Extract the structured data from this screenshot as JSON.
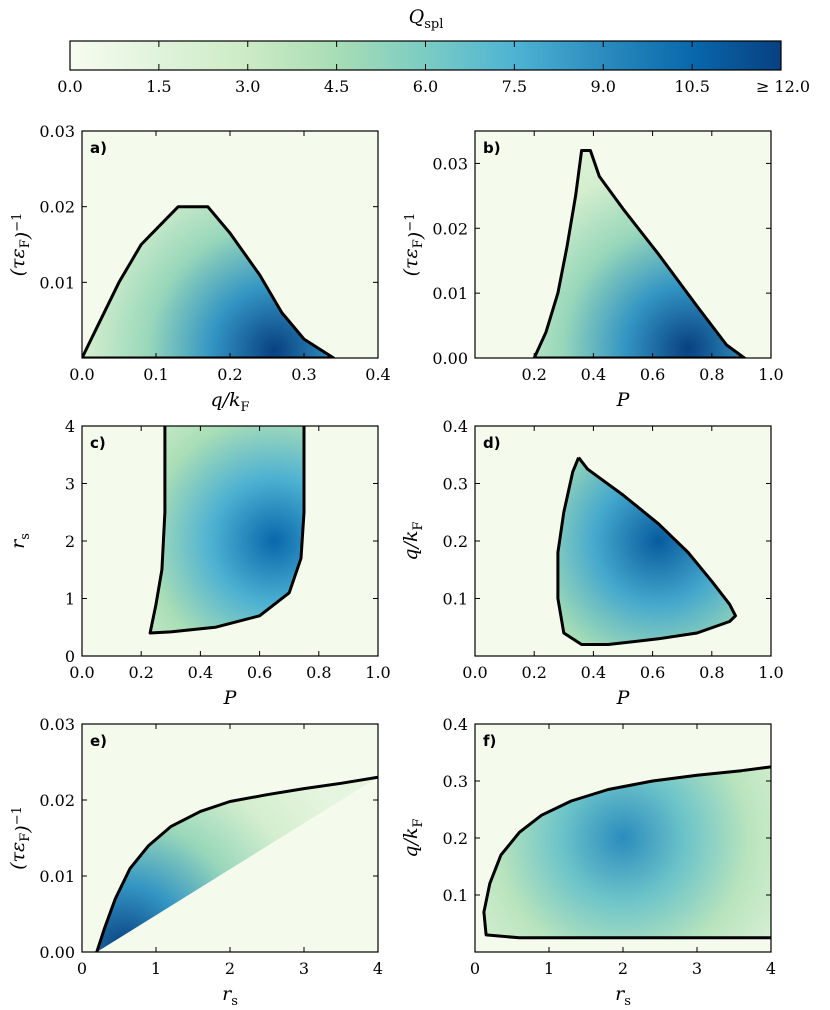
{
  "colorbar": {
    "label": "Q_spl",
    "label_main": "Q",
    "label_sub": "spl",
    "ticks": [
      0.0,
      1.5,
      3.0,
      4.5,
      6.0,
      7.5,
      9.0,
      10.5,
      12.0
    ],
    "tick_labels": [
      "0.0",
      "1.5",
      "3.0",
      "4.5",
      "6.0",
      "7.5",
      "9.0",
      "10.5",
      "≥ 12.0"
    ],
    "min": 0,
    "max": 12,
    "colormap": [
      "#f7fcf0",
      "#e0f3db",
      "#ccebc5",
      "#a8ddb5",
      "#7bccc4",
      "#4eb3d3",
      "#2b8cbe",
      "#0868ac",
      "#084081"
    ]
  },
  "chart_data": [
    {
      "type": "heatmap",
      "panel": "a)",
      "xlabel": "q/k_F",
      "ylabel": "(τε_F)^−1",
      "xlim": [
        0.0,
        0.4
      ],
      "ylim": [
        0.0,
        0.03
      ],
      "xticks": [
        0.0,
        0.1,
        0.2,
        0.3,
        0.4
      ],
      "xtick_labels": [
        "0.0",
        "0.1",
        "0.2",
        "0.3",
        "0.4"
      ],
      "yticks": [
        0.01,
        0.02,
        0.03
      ],
      "ytick_labels": [
        "0.01",
        "0.02",
        "0.03"
      ],
      "boundary": [
        [
          0.0,
          0.0
        ],
        [
          0.02,
          0.004
        ],
        [
          0.05,
          0.01
        ],
        [
          0.08,
          0.015
        ],
        [
          0.11,
          0.018
        ],
        [
          0.13,
          0.02
        ],
        [
          0.17,
          0.02
        ],
        [
          0.2,
          0.0165
        ],
        [
          0.24,
          0.011
        ],
        [
          0.27,
          0.006
        ],
        [
          0.3,
          0.0025
        ],
        [
          0.34,
          0.0
        ],
        [
          0.0,
          0.0
        ]
      ],
      "peak": {
        "x": 0.26,
        "y": 0.001,
        "value": 12.0
      }
    },
    {
      "type": "heatmap",
      "panel": "b)",
      "xlabel": "P",
      "ylabel": "(τε_F)^−1",
      "xlim": [
        0.0,
        1.0
      ],
      "ylim": [
        0.0,
        0.035
      ],
      "xticks": [
        0.2,
        0.4,
        0.6,
        0.8,
        1.0
      ],
      "xtick_labels": [
        "0.2",
        "0.4",
        "0.6",
        "0.8",
        "1.0"
      ],
      "yticks": [
        0.0,
        0.01,
        0.02,
        0.03
      ],
      "ytick_labels": [
        "0.00",
        "0.01",
        "0.02",
        "0.03"
      ],
      "boundary": [
        [
          0.2,
          0.0
        ],
        [
          0.24,
          0.004
        ],
        [
          0.28,
          0.01
        ],
        [
          0.31,
          0.017
        ],
        [
          0.34,
          0.025
        ],
        [
          0.36,
          0.032
        ],
        [
          0.39,
          0.032
        ],
        [
          0.42,
          0.028
        ],
        [
          0.5,
          0.023
        ],
        [
          0.62,
          0.016
        ],
        [
          0.75,
          0.008
        ],
        [
          0.85,
          0.002
        ],
        [
          0.91,
          0.0
        ],
        [
          0.2,
          0.0
        ]
      ],
      "peak": {
        "x": 0.72,
        "y": 0.0015,
        "value": 12.0
      }
    },
    {
      "type": "heatmap",
      "panel": "c)",
      "xlabel": "P",
      "ylabel": "r_s",
      "xlim": [
        0.0,
        1.0
      ],
      "ylim": [
        0.0,
        4.0
      ],
      "xticks": [
        0.0,
        0.2,
        0.4,
        0.6,
        0.8,
        1.0
      ],
      "xtick_labels": [
        "0.0",
        "0.2",
        "0.4",
        "0.6",
        "0.8",
        "1.0"
      ],
      "yticks": [
        0,
        1,
        2,
        3,
        4
      ],
      "ytick_labels": [
        "0",
        "1",
        "2",
        "3",
        "4"
      ],
      "boundary": [
        [
          0.28,
          4.0
        ],
        [
          0.28,
          2.5
        ],
        [
          0.27,
          1.5
        ],
        [
          0.25,
          0.9
        ],
        [
          0.23,
          0.4
        ],
        [
          0.3,
          0.42
        ],
        [
          0.45,
          0.5
        ],
        [
          0.6,
          0.7
        ],
        [
          0.7,
          1.1
        ],
        [
          0.74,
          1.7
        ],
        [
          0.75,
          2.5
        ],
        [
          0.75,
          4.0
        ]
      ],
      "peak": {
        "x": 0.65,
        "y": 2.0,
        "value": 10.5
      }
    },
    {
      "type": "heatmap",
      "panel": "d)",
      "xlabel": "P",
      "ylabel": "q/k_F",
      "xlim": [
        0.0,
        1.0
      ],
      "ylim": [
        0.0,
        0.4
      ],
      "xticks": [
        0.0,
        0.2,
        0.4,
        0.6,
        0.8,
        1.0
      ],
      "xtick_labels": [
        "0.0",
        "0.2",
        "0.4",
        "0.6",
        "0.8",
        "1.0"
      ],
      "yticks": [
        0.1,
        0.2,
        0.3,
        0.4
      ],
      "ytick_labels": [
        "0.1",
        "0.2",
        "0.3",
        "0.4"
      ],
      "boundary": [
        [
          0.35,
          0.345
        ],
        [
          0.38,
          0.325
        ],
        [
          0.5,
          0.28
        ],
        [
          0.62,
          0.23
        ],
        [
          0.72,
          0.18
        ],
        [
          0.8,
          0.13
        ],
        [
          0.86,
          0.09
        ],
        [
          0.88,
          0.07
        ],
        [
          0.86,
          0.06
        ],
        [
          0.75,
          0.04
        ],
        [
          0.62,
          0.03
        ],
        [
          0.45,
          0.02
        ],
        [
          0.36,
          0.02
        ],
        [
          0.3,
          0.04
        ],
        [
          0.28,
          0.1
        ],
        [
          0.28,
          0.18
        ],
        [
          0.3,
          0.25
        ],
        [
          0.33,
          0.32
        ],
        [
          0.35,
          0.345
        ]
      ],
      "peak": {
        "x": 0.62,
        "y": 0.2,
        "value": 11.0
      }
    },
    {
      "type": "heatmap",
      "panel": "e)",
      "xlabel": "r_s",
      "ylabel": "(τε_F)^−1",
      "xlim": [
        0,
        4
      ],
      "ylim": [
        0.0,
        0.03
      ],
      "xticks": [
        0,
        1,
        2,
        3,
        4
      ],
      "xtick_labels": [
        "0",
        "1",
        "2",
        "3",
        "4"
      ],
      "yticks": [
        0.0,
        0.01,
        0.02,
        0.03
      ],
      "ytick_labels": [
        "0.00",
        "0.01",
        "0.02",
        "0.03"
      ],
      "boundary": [
        [
          0.2,
          0.0
        ],
        [
          0.3,
          0.003
        ],
        [
          0.45,
          0.007
        ],
        [
          0.65,
          0.011
        ],
        [
          0.9,
          0.014
        ],
        [
          1.2,
          0.0165
        ],
        [
          1.6,
          0.0185
        ],
        [
          2.0,
          0.0198
        ],
        [
          2.5,
          0.0207
        ],
        [
          3.0,
          0.0215
        ],
        [
          3.5,
          0.0222
        ],
        [
          4.0,
          0.023
        ]
      ],
      "peak": {
        "x": 0.55,
        "y": 0.0005,
        "value": 12.0
      }
    },
    {
      "type": "heatmap",
      "panel": "f)",
      "xlabel": "r_s",
      "ylabel": "q/k_F",
      "xlim": [
        0,
        4
      ],
      "ylim": [
        0.0,
        0.4
      ],
      "xticks": [
        0,
        1,
        2,
        3,
        4
      ],
      "xtick_labels": [
        "0",
        "1",
        "2",
        "3",
        "4"
      ],
      "yticks": [
        0.1,
        0.2,
        0.3,
        0.4
      ],
      "ytick_labels": [
        "0.1",
        "0.2",
        "0.3",
        "0.4"
      ],
      "boundary": [
        [
          4.0,
          0.025
        ],
        [
          0.6,
          0.025
        ],
        [
          0.15,
          0.03
        ],
        [
          0.12,
          0.07
        ],
        [
          0.2,
          0.12
        ],
        [
          0.35,
          0.17
        ],
        [
          0.6,
          0.21
        ],
        [
          0.9,
          0.24
        ],
        [
          1.3,
          0.265
        ],
        [
          1.8,
          0.285
        ],
        [
          2.4,
          0.3
        ],
        [
          3.0,
          0.31
        ],
        [
          3.6,
          0.318
        ],
        [
          4.0,
          0.325
        ]
      ],
      "peak": {
        "x": 2.0,
        "y": 0.2,
        "value": 9.0
      }
    }
  ]
}
